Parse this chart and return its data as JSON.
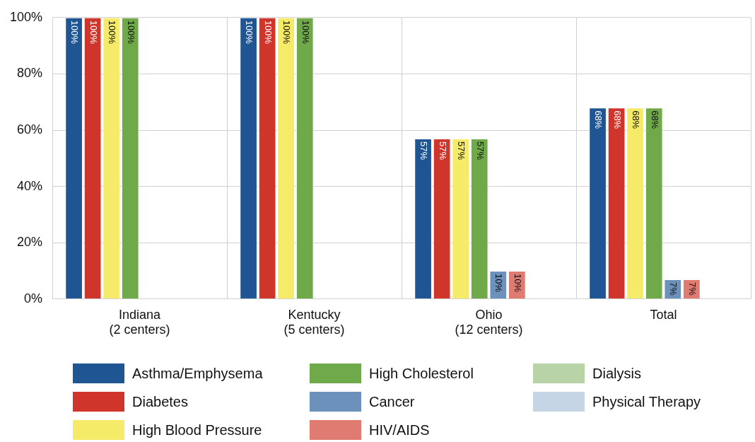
{
  "chart_data": {
    "type": "bar",
    "categories": [
      "Indiana\n(2 centers)",
      "Kentucky\n(5 centers)",
      "Ohio\n(12 centers)",
      "Total"
    ],
    "series": [
      {
        "name": "Asthma/Emphysema",
        "color": "#1f5593",
        "values": [
          100,
          100,
          57,
          68
        ],
        "value_labels": [
          "100%",
          "100%",
          "57%",
          "68%"
        ]
      },
      {
        "name": "Diabetes",
        "color": "#d0352b",
        "values": [
          100,
          100,
          57,
          68
        ],
        "value_labels": [
          "100%",
          "100%",
          "57%",
          "68%"
        ]
      },
      {
        "name": "High Blood Pressure",
        "color": "#f6eb69",
        "values": [
          100,
          100,
          57,
          68
        ],
        "value_labels": [
          "100%",
          "100%",
          "57%",
          "68%"
        ]
      },
      {
        "name": "High Cholesterol",
        "color": "#6fa94a",
        "values": [
          100,
          100,
          57,
          68
        ],
        "value_labels": [
          "100%",
          "100%",
          "57%",
          "68%"
        ]
      },
      {
        "name": "Cancer",
        "color": "#6c92bb",
        "values": [
          null,
          null,
          10,
          7
        ],
        "value_labels": [
          null,
          null,
          "10%",
          "7%"
        ]
      },
      {
        "name": "HIV/AIDS",
        "color": "#e07b72",
        "values": [
          null,
          null,
          10,
          7
        ],
        "value_labels": [
          null,
          null,
          "10%",
          "7%"
        ]
      },
      {
        "name": "Dialysis",
        "color": "#b8d4a6",
        "values": [
          null,
          null,
          null,
          null
        ]
      },
      {
        "name": "Physical Therapy",
        "color": "#c5d5e5",
        "values": [
          null,
          null,
          null,
          null
        ]
      }
    ],
    "ylim": [
      0,
      100
    ],
    "yticks": [
      {
        "value": 0,
        "label": "0%"
      },
      {
        "value": 20,
        "label": "20%"
      },
      {
        "value": 40,
        "label": "40%"
      },
      {
        "value": 60,
        "label": "60%"
      },
      {
        "value": 80,
        "label": "80%"
      },
      {
        "value": 100,
        "label": "100%"
      }
    ],
    "grid": true,
    "legend": "bottom"
  }
}
